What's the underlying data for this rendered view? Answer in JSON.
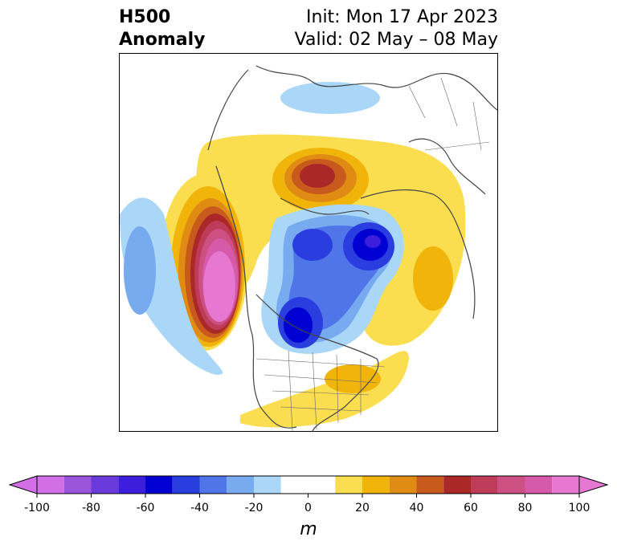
{
  "title": {
    "left_line1": "H500",
    "left_line2": "Anomaly",
    "right_line1": "Init: Mon 17 Apr 2023",
    "right_line2": "Valid: 02 May – 08 May"
  },
  "colorbar": {
    "units": "m",
    "ticks": [
      "-100",
      "-80",
      "-60",
      "-40",
      "-20",
      "0",
      "20",
      "40",
      "60",
      "80",
      "100"
    ],
    "tick_values": [
      -100,
      -80,
      -60,
      -40,
      -20,
      0,
      20,
      40,
      60,
      80,
      100
    ],
    "min": -100,
    "max": 100,
    "levels": [
      -100,
      -90,
      -80,
      -70,
      -60,
      -50,
      -40,
      -30,
      -20,
      -10,
      10,
      20,
      30,
      40,
      50,
      60,
      70,
      80,
      90,
      100
    ],
    "colors": [
      "#d26ee6",
      "#9b55dc",
      "#6a3adc",
      "#3c1edc",
      "#0000d2",
      "#2a3ee0",
      "#4f75e8",
      "#78aaf0",
      "#aad7f8",
      "#ffffff",
      "#fade50",
      "#f0b40a",
      "#e08c14",
      "#c85a1e",
      "#aa2828",
      "#be3c5a",
      "#cd5082",
      "#d75aaa",
      "#e678d2"
    ],
    "under_color": "#d26ee6",
    "over_color": "#e678d2"
  },
  "map": {
    "projection": "north-polar-stereographic",
    "field": "500 hPa geopotential height anomaly"
  }
}
